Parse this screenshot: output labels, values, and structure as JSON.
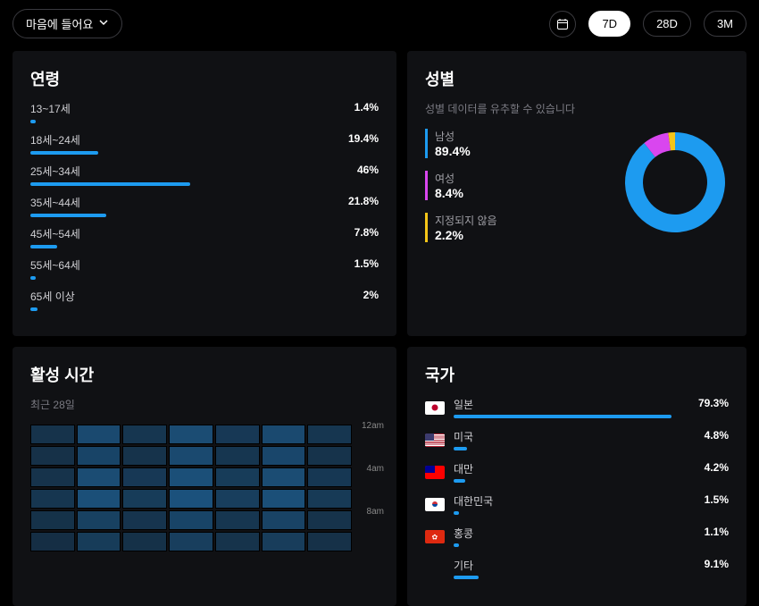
{
  "colors": {
    "accent": "#1d9bf0",
    "magenta": "#d946ef",
    "yellow": "#f5c518",
    "card": "#101114",
    "text_muted": "#7a7a82"
  },
  "topbar": {
    "dropdown_label": "마음에 들어요",
    "filters": [
      {
        "label": "7D",
        "active": true
      },
      {
        "label": "28D",
        "active": false
      },
      {
        "label": "3M",
        "active": false
      }
    ]
  },
  "age": {
    "title": "연령",
    "rows": [
      {
        "label": "13~17세",
        "pct": "1.4%",
        "width_pct": 1.4
      },
      {
        "label": "18세~24세",
        "pct": "19.4%",
        "width_pct": 19.4
      },
      {
        "label": "25세~34세",
        "pct": "46%",
        "width_pct": 46
      },
      {
        "label": "35세~44세",
        "pct": "21.8%",
        "width_pct": 21.8
      },
      {
        "label": "45세~54세",
        "pct": "7.8%",
        "width_pct": 7.8
      },
      {
        "label": "55세~64세",
        "pct": "1.5%",
        "width_pct": 1.5
      },
      {
        "label": "65세 이상",
        "pct": "2%",
        "width_pct": 2
      }
    ]
  },
  "gender": {
    "title": "성별",
    "subtitle": "성별 데이터를 유추할 수 있습니다",
    "items": [
      {
        "label": "남성",
        "pct": "89.4%",
        "value": 89.4,
        "color": "#1d9bf0"
      },
      {
        "label": "여성",
        "pct": "8.4%",
        "value": 8.4,
        "color": "#d946ef"
      },
      {
        "label": "지정되지 않음",
        "pct": "2.2%",
        "value": 2.2,
        "color": "#f5c518"
      }
    ],
    "donut": {
      "inner_radius": 36,
      "outer_radius": 56
    }
  },
  "country": {
    "title": "국가",
    "rows": [
      {
        "label": "일본",
        "pct": "79.3%",
        "width_pct": 79.3,
        "flag": "jp"
      },
      {
        "label": "미국",
        "pct": "4.8%",
        "width_pct": 4.8,
        "flag": "us"
      },
      {
        "label": "대만",
        "pct": "4.2%",
        "width_pct": 4.2,
        "flag": "tw"
      },
      {
        "label": "대한민국",
        "pct": "1.5%",
        "width_pct": 1.5,
        "flag": "kr"
      },
      {
        "label": "홍콩",
        "pct": "1.1%",
        "width_pct": 1.1,
        "flag": "hk"
      },
      {
        "label": "기타",
        "pct": "9.1%",
        "width_pct": 9.1,
        "flag": null
      }
    ]
  },
  "activity": {
    "title": "활성 시간",
    "subtitle": "최근 28일",
    "time_labels": [
      "12am",
      "4am",
      "8am"
    ],
    "columns": 7,
    "visible_rows": 6,
    "cells": [
      [
        0.3,
        0.7,
        0.35,
        0.75,
        0.4,
        0.7,
        0.35
      ],
      [
        0.25,
        0.6,
        0.3,
        0.7,
        0.35,
        0.65,
        0.3
      ],
      [
        0.3,
        0.75,
        0.4,
        0.8,
        0.45,
        0.75,
        0.38
      ],
      [
        0.35,
        0.8,
        0.45,
        0.85,
        0.5,
        0.8,
        0.42
      ],
      [
        0.28,
        0.55,
        0.32,
        0.6,
        0.35,
        0.58,
        0.3
      ],
      [
        0.22,
        0.45,
        0.26,
        0.5,
        0.3,
        0.48,
        0.25
      ]
    ],
    "heatmap_base_color": "#1d5a8a"
  }
}
